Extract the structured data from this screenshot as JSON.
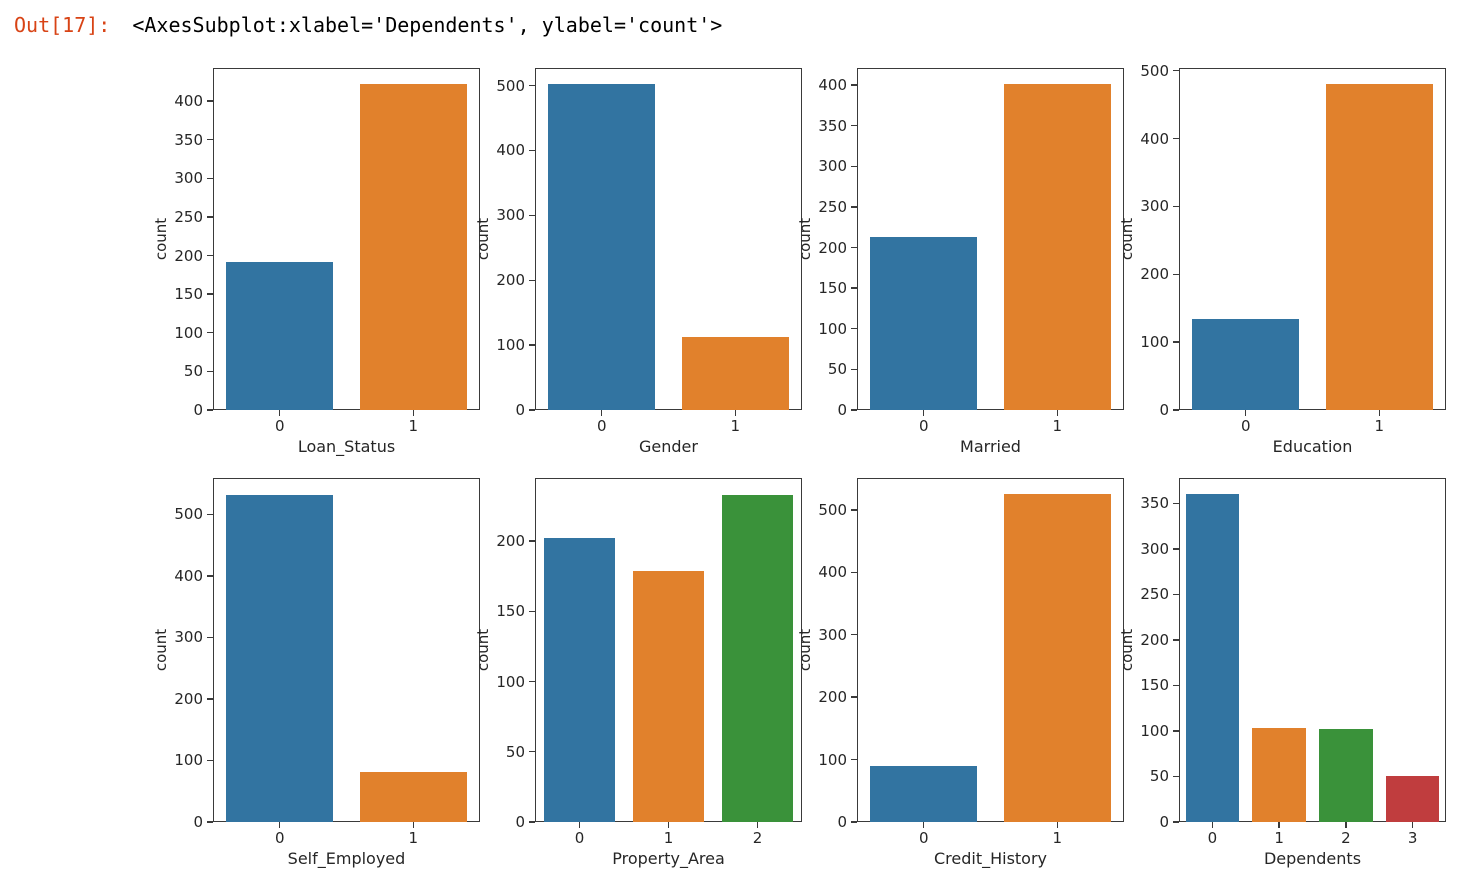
{
  "output": {
    "prompt": "Out[17]:",
    "text": "<AxesSubplot:xlabel='Dependents', ylabel='count'>"
  },
  "colors": {
    "prompt_color": "#d84315",
    "spine_color": "#3a3a3a",
    "palette": [
      "#3274a1",
      "#e1812c",
      "#3a923a",
      "#c03d3e"
    ]
  },
  "chart_data": [
    {
      "type": "bar",
      "title": "",
      "xlabel": "Loan_Status",
      "ylabel": "count",
      "categories": [
        "0",
        "1"
      ],
      "values": [
        192,
        422
      ],
      "yticks": [
        0,
        50,
        100,
        150,
        200,
        250,
        300,
        350,
        400
      ],
      "ylim": [
        0,
        443
      ],
      "grid": false,
      "legend": "none"
    },
    {
      "type": "bar",
      "title": "",
      "xlabel": "Gender",
      "ylabel": "count",
      "categories": [
        "0",
        "1"
      ],
      "values": [
        502,
        112
      ],
      "yticks": [
        0,
        100,
        200,
        300,
        400,
        500
      ],
      "ylim": [
        0,
        527
      ],
      "grid": false,
      "legend": "none"
    },
    {
      "type": "bar",
      "title": "",
      "xlabel": "Married",
      "ylabel": "count",
      "categories": [
        "0",
        "1"
      ],
      "values": [
        213,
        401
      ],
      "yticks": [
        0,
        50,
        100,
        150,
        200,
        250,
        300,
        350,
        400
      ],
      "ylim": [
        0,
        421
      ],
      "grid": false,
      "legend": "none"
    },
    {
      "type": "bar",
      "title": "",
      "xlabel": "Education",
      "ylabel": "count",
      "categories": [
        "0",
        "1"
      ],
      "values": [
        134,
        480
      ],
      "yticks": [
        0,
        100,
        200,
        300,
        400,
        500
      ],
      "ylim": [
        0,
        504
      ],
      "grid": false,
      "legend": "none"
    },
    {
      "type": "bar",
      "title": "",
      "xlabel": "Self_Employed",
      "ylabel": "count",
      "categories": [
        "0",
        "1"
      ],
      "values": [
        532,
        82
      ],
      "yticks": [
        0,
        100,
        200,
        300,
        400,
        500
      ],
      "ylim": [
        0,
        559
      ],
      "grid": false,
      "legend": "none"
    },
    {
      "type": "bar",
      "title": "",
      "xlabel": "Property_Area",
      "ylabel": "count",
      "categories": [
        "0",
        "1",
        "2"
      ],
      "values": [
        202,
        179,
        233
      ],
      "yticks": [
        0,
        50,
        100,
        150,
        200
      ],
      "ylim": [
        0,
        245
      ],
      "grid": false,
      "legend": "none"
    },
    {
      "type": "bar",
      "title": "",
      "xlabel": "Credit_History",
      "ylabel": "count",
      "categories": [
        "0",
        "1"
      ],
      "values": [
        89,
        525
      ],
      "yticks": [
        0,
        100,
        200,
        300,
        400,
        500
      ],
      "ylim": [
        0,
        551
      ],
      "grid": false,
      "legend": "none"
    },
    {
      "type": "bar",
      "title": "",
      "xlabel": "Dependents",
      "ylabel": "count",
      "categories": [
        "0",
        "1",
        "2",
        "3"
      ],
      "values": [
        360,
        103,
        102,
        51
      ],
      "yticks": [
        0,
        50,
        100,
        150,
        200,
        250,
        300,
        350
      ],
      "ylim": [
        0,
        378
      ],
      "grid": false,
      "legend": "none"
    }
  ]
}
